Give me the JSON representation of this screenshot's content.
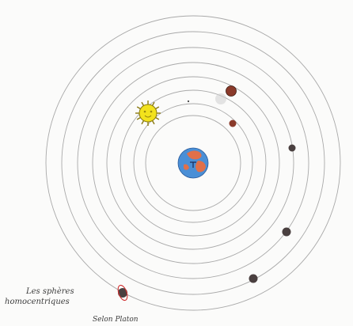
{
  "caption": {
    "title_line_1": "Les sphères",
    "title_line_2": "homocentriques",
    "attribution": "Selon Platon"
  },
  "colors": {
    "orbit": "#a9a9a9",
    "earth_ocean": "#4a8fd6",
    "earth_land": "#e0704a",
    "sun": "#f2e21c",
    "sun_face": "#9a8a10",
    "moon": "#cfcfcf",
    "mars": "#8a3a2a",
    "planet_dark": "#4a4040",
    "saturn_ring": "#d03030"
  },
  "diagram": {
    "center_body": "earth",
    "orbit_count": 8,
    "bodies": [
      "moon",
      "sun",
      "venus",
      "mercury",
      "mars",
      "jupiter",
      "saturn",
      "outer"
    ]
  }
}
